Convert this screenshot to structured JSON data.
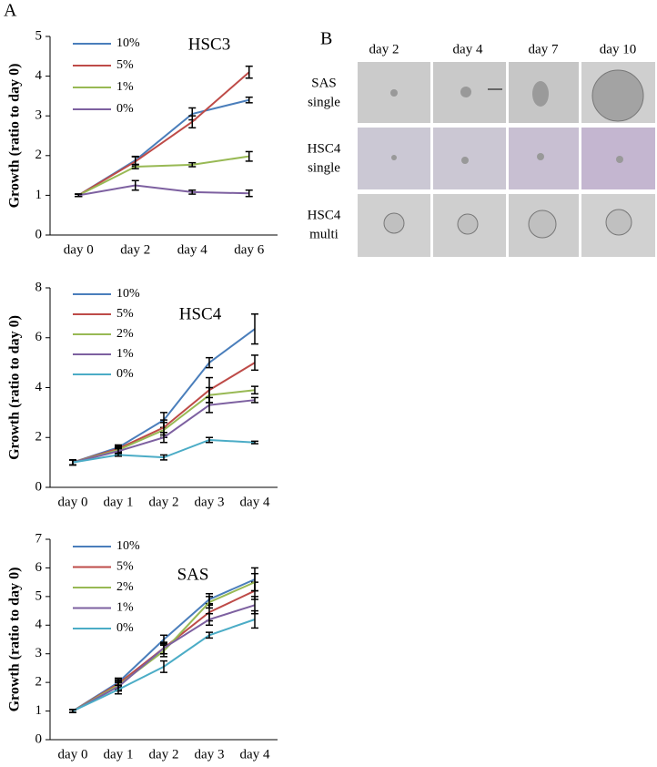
{
  "panel_labels": [
    "A",
    "B"
  ],
  "chart_data": [
    {
      "type": "line",
      "title": "HSC3",
      "y_label": "Growth (ratio to day 0)",
      "legend": "upper left",
      "categories": [
        "day 0",
        "day 2",
        "day 4",
        "day 6"
      ],
      "ylim": [
        0,
        5
      ],
      "yticks": [
        0,
        1,
        2,
        3,
        4,
        5
      ],
      "series": [
        {
          "name": "10%",
          "color": "#4a7ebb",
          "values": [
            1,
            1.88,
            3.05,
            3.4
          ],
          "errors": [
            0.03,
            0.1,
            0.15,
            0.07
          ]
        },
        {
          "name": "5%",
          "color": "#be4b48",
          "values": [
            1,
            1.85,
            2.85,
            4.1
          ],
          "errors": [
            0.03,
            0.12,
            0.15,
            0.15
          ]
        },
        {
          "name": "1%",
          "color": "#98b954",
          "values": [
            1,
            1.72,
            1.77,
            1.98
          ],
          "errors": [
            0.03,
            0.05,
            0.05,
            0.12
          ]
        },
        {
          "name": "0%",
          "color": "#7d60a0",
          "values": [
            1,
            1.25,
            1.08,
            1.05
          ],
          "errors": [
            0.03,
            0.12,
            0.05,
            0.08
          ]
        }
      ]
    },
    {
      "type": "line",
      "title": "HSC4",
      "y_label": "Growth (ratio to day 0)",
      "legend": "upper left",
      "categories": [
        "day 0",
        "day 1",
        "day 2",
        "day 3",
        "day 4"
      ],
      "ylim": [
        0,
        8
      ],
      "yticks": [
        0,
        2,
        4,
        6,
        8
      ],
      "series": [
        {
          "name": "10%",
          "color": "#4a7ebb",
          "values": [
            1,
            1.6,
            2.7,
            5.0,
            6.35
          ],
          "errors": [
            0.1,
            0.1,
            0.3,
            0.2,
            0.6
          ]
        },
        {
          "name": "5%",
          "color": "#be4b48",
          "values": [
            1,
            1.55,
            2.4,
            3.9,
            5.0
          ],
          "errors": [
            0.1,
            0.1,
            0.3,
            0.5,
            0.3
          ]
        },
        {
          "name": "2%",
          "color": "#98b954",
          "values": [
            1,
            1.5,
            2.3,
            3.7,
            3.9
          ],
          "errors": [
            0.1,
            0.1,
            0.3,
            0.3,
            0.15
          ]
        },
        {
          "name": "1%",
          "color": "#7d60a0",
          "values": [
            1,
            1.45,
            2.0,
            3.3,
            3.5
          ],
          "errors": [
            0.1,
            0.1,
            0.2,
            0.3,
            0.1
          ]
        },
        {
          "name": "0%",
          "color": "#4bacc6",
          "values": [
            1,
            1.3,
            1.2,
            1.9,
            1.8
          ],
          "errors": [
            0.1,
            0.05,
            0.1,
            0.1,
            0.05
          ]
        }
      ]
    },
    {
      "type": "line",
      "title": "SAS",
      "y_label": "Growth (ratio to day 0)",
      "legend": "upper left",
      "categories": [
        "day 0",
        "day 1",
        "day 2",
        "day 3",
        "day 4"
      ],
      "ylim": [
        0,
        7
      ],
      "yticks": [
        0,
        1,
        2,
        3,
        4,
        5,
        6,
        7
      ],
      "series": [
        {
          "name": "10%",
          "color": "#4a7ebb",
          "values": [
            1,
            2.0,
            3.5,
            4.9,
            5.6
          ],
          "errors": [
            0.05,
            0.15,
            0.15,
            0.2,
            0.4
          ]
        },
        {
          "name": "5%",
          "color": "#be4b48",
          "values": [
            1,
            1.95,
            3.2,
            4.45,
            5.2
          ],
          "errors": [
            0.05,
            0.15,
            0.2,
            0.3,
            0.3
          ]
        },
        {
          "name": "2%",
          "color": "#98b954",
          "values": [
            1,
            1.9,
            3.1,
            4.8,
            5.5
          ],
          "errors": [
            0.05,
            0.15,
            0.2,
            0.2,
            0.3
          ]
        },
        {
          "name": "1%",
          "color": "#7d60a0",
          "values": [
            1,
            1.85,
            3.2,
            4.2,
            4.7
          ],
          "errors": [
            0.05,
            0.15,
            0.2,
            0.2,
            0.3
          ]
        },
        {
          "name": "0%",
          "color": "#4bacc6",
          "values": [
            1,
            1.75,
            2.55,
            3.65,
            4.2
          ],
          "errors": [
            0.05,
            0.15,
            0.2,
            0.1,
            0.3
          ]
        }
      ]
    }
  ],
  "image_grid": {
    "columns": [
      "day 2",
      "day 4",
      "day 7",
      "day 10"
    ],
    "rows": [
      [
        "SAS",
        "single"
      ],
      [
        "HSC4",
        "single"
      ],
      [
        "HSC4",
        "multi"
      ]
    ]
  }
}
